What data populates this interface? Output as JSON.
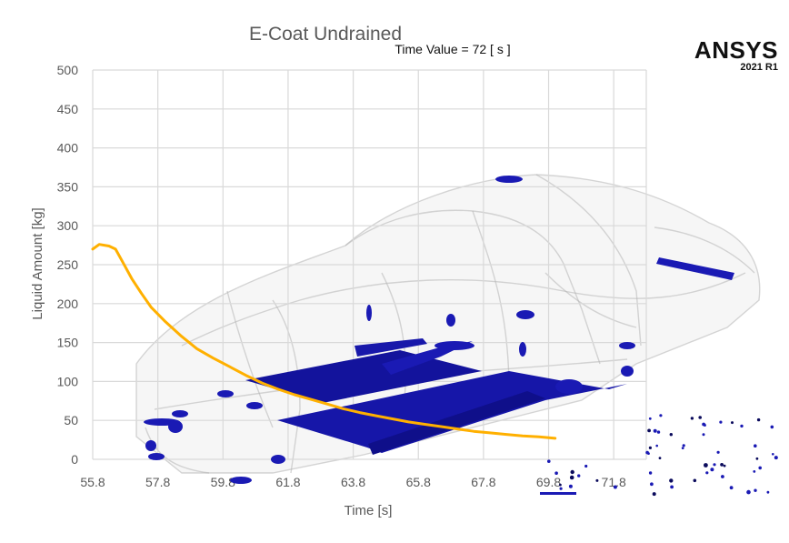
{
  "brand": {
    "name": "ANSYS",
    "version": "2021 R1"
  },
  "time_value": "Time Value = 72 [ s ]",
  "colors": {
    "curve": "#FFB000",
    "particles": "#1a1ab4",
    "particles_dark": "#0b0b5c",
    "grid": "#d9d9d9",
    "axis_text": "#595959"
  },
  "chart_data": {
    "type": "line",
    "title": "E-Coat Undrained",
    "xlabel": "Time [s]",
    "ylabel": "Liquid Amount [kg]",
    "xlim": [
      55.8,
      72.8
    ],
    "ylim": [
      0,
      500
    ],
    "x_ticks": [
      "55.8",
      "57.8",
      "59.8",
      "61.8",
      "63.8",
      "65.8",
      "67.8",
      "69.8",
      "71.8"
    ],
    "y_ticks": [
      "0",
      "50",
      "100",
      "150",
      "200",
      "250",
      "300",
      "350",
      "400",
      "450",
      "500"
    ],
    "grid": true,
    "series": [
      {
        "x": [
          55.8,
          56.0,
          56.3,
          56.5,
          56.7,
          57.0,
          57.3,
          57.6,
          58.0,
          58.5,
          59.0,
          59.5,
          60.0,
          60.5,
          61.0,
          61.5,
          62.0,
          62.5,
          63.0,
          63.5,
          64.0,
          64.5,
          65.0,
          65.5,
          66.0,
          66.5,
          67.0,
          67.5,
          68.0,
          68.5,
          69.0,
          69.5,
          70.0
        ],
        "y": [
          270,
          276,
          274,
          270,
          255,
          232,
          213,
          195,
          178,
          159,
          142,
          130,
          119,
          108,
          98,
          90,
          83,
          77,
          71,
          65,
          60,
          56,
          52,
          48,
          45,
          42,
          39,
          36,
          34,
          32,
          30,
          29,
          27
        ]
      }
    ]
  }
}
